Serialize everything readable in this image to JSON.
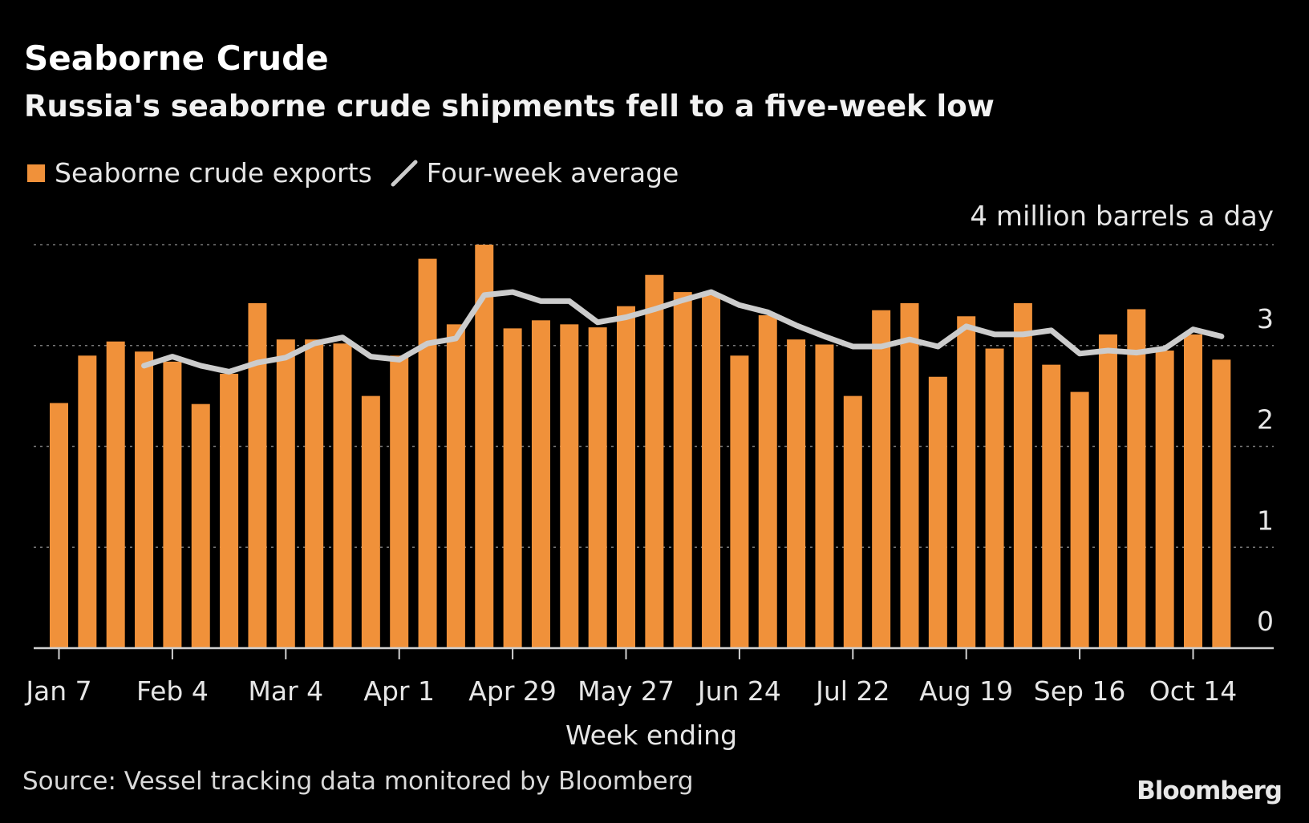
{
  "header": {
    "title": "Seaborne Crude",
    "subtitle": "Russia's seaborne crude shipments fell to a five-week low"
  },
  "legend": {
    "bar_label": "Seaborne crude exports",
    "line_label": "Four-week average"
  },
  "footer": {
    "source": "Source: Vessel tracking data monitored by Bloomberg",
    "brand": "Bloomberg"
  },
  "colors": {
    "background": "#000000",
    "bar": "#f0913a",
    "line": "#cccccc",
    "grid": "#777777",
    "text": "#ffffff"
  },
  "chart_data": {
    "type": "bar",
    "title": "Seaborne Crude",
    "subtitle": "Russia's seaborne crude shipments fell to a five-week low",
    "xlabel": "Week ending",
    "ylabel": "million barrels a day",
    "y_unit_label": "4 million barrels a day",
    "ylim": [
      0,
      4
    ],
    "yticks": [
      0,
      1,
      2,
      3,
      4
    ],
    "grid": true,
    "legend_position": "top-left",
    "x_tick_labels": [
      "Jan 7",
      "Feb 4",
      "Mar 4",
      "Apr 1",
      "Apr 29",
      "May 27",
      "Jun 24",
      "Jul 22",
      "Aug 19",
      "Sep 16",
      "Oct 14"
    ],
    "x_tick_weeks": [
      0,
      4,
      8,
      12,
      16,
      20,
      24,
      28,
      32,
      36,
      40
    ],
    "series": [
      {
        "name": "Seaborne crude exports",
        "type": "bar",
        "values": [
          2.43,
          2.9,
          3.04,
          2.94,
          2.84,
          2.42,
          2.72,
          3.42,
          3.06,
          3.06,
          3.02,
          2.5,
          2.9,
          3.86,
          3.21,
          4.0,
          3.17,
          3.25,
          3.21,
          3.18,
          3.39,
          3.7,
          3.53,
          3.5,
          2.9,
          3.3,
          3.06,
          3.01,
          2.5,
          3.35,
          3.42,
          2.69,
          3.29,
          2.97,
          3.42,
          2.81,
          2.54,
          3.11,
          3.36,
          2.95,
          3.11,
          2.86
        ]
      },
      {
        "name": "Four-week average",
        "type": "line",
        "start_index": 3,
        "values": [
          2.8,
          2.89,
          2.8,
          2.74,
          2.83,
          2.88,
          3.02,
          3.08,
          2.89,
          2.86,
          3.02,
          3.07,
          3.5,
          3.53,
          3.44,
          3.44,
          3.23,
          3.28,
          3.36,
          3.45,
          3.53,
          3.4,
          3.33,
          3.2,
          3.09,
          2.99,
          2.99,
          3.06,
          2.99,
          3.19,
          3.11,
          3.11,
          3.15,
          2.92,
          2.95,
          2.93,
          2.97,
          3.16,
          3.09
        ]
      }
    ]
  }
}
